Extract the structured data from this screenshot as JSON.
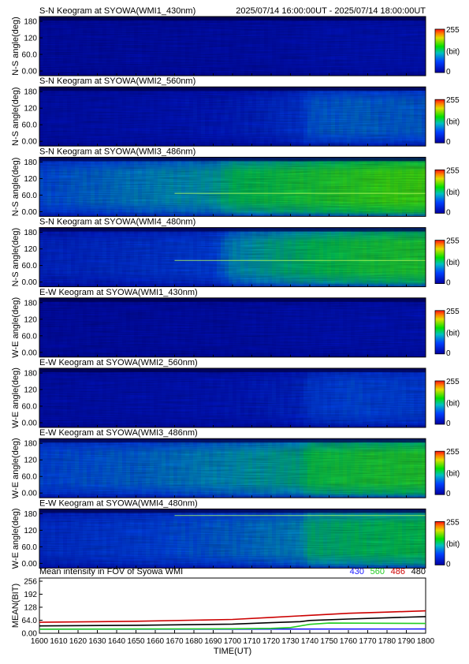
{
  "header": {
    "time_range": "2025/07/14 16:00:00UT - 2025/07/14 18:00:00UT"
  },
  "colorbar": {
    "max_label": "255",
    "unit_label": "(bit)",
    "min_label": "0"
  },
  "keogram_y_ticks": [
    "180",
    "120",
    "60.0",
    "0.00"
  ],
  "chart_data": [
    {
      "type": "heatmap",
      "title": "S-N Keogram at SYOWA(WMI1_430nm)",
      "ylabel": "N-S angle(deg)",
      "ylim": [
        0,
        180
      ],
      "xlim": [
        1600,
        1800
      ],
      "intensity_profile": {
        "x": [
          1600,
          1650,
          1700,
          1735,
          1740,
          1800
        ],
        "values": [
          22,
          24,
          26,
          30,
          34,
          36
        ]
      },
      "bright_band_deg": null
    },
    {
      "type": "heatmap",
      "title": "S-N Keogram at SYOWA(WMI2_560nm)",
      "ylabel": "N-S angle(deg)",
      "ylim": [
        0,
        180
      ],
      "xlim": [
        1600,
        1800
      ],
      "intensity_profile": {
        "x": [
          1600,
          1650,
          1700,
          1720,
          1735,
          1740,
          1760,
          1800
        ],
        "values": [
          28,
          34,
          44,
          52,
          60,
          75,
          80,
          78
        ]
      },
      "bright_band_deg": null
    },
    {
      "type": "heatmap",
      "title": "S-N Keogram at SYOWA(WMI3_486nm)",
      "ylabel": "N-S angle(deg)",
      "ylim": [
        0,
        180
      ],
      "xlim": [
        1600,
        1800
      ],
      "intensity_profile": {
        "x": [
          1600,
          1630,
          1660,
          1690,
          1700,
          1720,
          1740,
          1760,
          1780,
          1800
        ],
        "values": [
          72,
          82,
          92,
          100,
          118,
          125,
          132,
          140,
          148,
          150
        ]
      },
      "bright_band_deg": 70
    },
    {
      "type": "heatmap",
      "title": "S-N Keogram at SYOWA(WMI4_480nm)",
      "ylabel": "N-S angle(deg)",
      "ylim": [
        0,
        180
      ],
      "xlim": [
        1600,
        1800
      ],
      "intensity_profile": {
        "x": [
          1600,
          1630,
          1660,
          1690,
          1700,
          1720,
          1740,
          1760,
          1780,
          1800
        ],
        "values": [
          50,
          54,
          60,
          66,
          92,
          106,
          118,
          126,
          132,
          134
        ]
      },
      "bright_band_deg": 80
    },
    {
      "type": "heatmap",
      "title": "E-W Keogram at SYOWA(WMI1_430nm)",
      "ylabel": "W-E angle(deg)",
      "ylim": [
        0,
        180
      ],
      "xlim": [
        1600,
        1800
      ],
      "intensity_profile": {
        "x": [
          1600,
          1650,
          1700,
          1740,
          1800
        ],
        "values": [
          22,
          24,
          26,
          32,
          36
        ]
      },
      "bright_band_deg": null
    },
    {
      "type": "heatmap",
      "title": "E-W Keogram at SYOWA(WMI2_560nm)",
      "ylabel": "W-E angle(deg)",
      "ylim": [
        0,
        180
      ],
      "xlim": [
        1600,
        1800
      ],
      "intensity_profile": {
        "x": [
          1600,
          1650,
          1700,
          1735,
          1740,
          1760,
          1800
        ],
        "values": [
          28,
          32,
          40,
          50,
          62,
          70,
          66
        ]
      },
      "bright_band_deg": null
    },
    {
      "type": "heatmap",
      "title": "E-W Keogram at SYOWA(WMI3_486nm)",
      "ylabel": "W-E angle(deg)",
      "ylim": [
        0,
        180
      ],
      "xlim": [
        1600,
        1800
      ],
      "intensity_profile": {
        "x": [
          1600,
          1650,
          1700,
          1735,
          1740,
          1770,
          1800
        ],
        "values": [
          70,
          80,
          96,
          108,
          124,
          132,
          136
        ]
      },
      "bright_band_deg": null
    },
    {
      "type": "heatmap",
      "title": "E-W Keogram at SYOWA(WMI4_480nm)",
      "ylabel": "W-E angle(deg)",
      "ylim": [
        0,
        180
      ],
      "xlim": [
        1600,
        1800
      ],
      "intensity_profile": {
        "x": [
          1600,
          1650,
          1700,
          1735,
          1740,
          1770,
          1800
        ],
        "values": [
          55,
          66,
          80,
          92,
          110,
          118,
          122
        ]
      },
      "bright_band_deg": 160
    },
    {
      "type": "line",
      "title": "Mean intensity in FOV of Syowa WMI",
      "xlabel": "TIME(UT)",
      "ylabel": "MEAN(BIT)",
      "xlim": [
        1600,
        1800
      ],
      "ylim": [
        0,
        256
      ],
      "x_ticks": [
        "1600",
        "1610",
        "1620",
        "1630",
        "1640",
        "1650",
        "1660",
        "1670",
        "1680",
        "1690",
        "1700",
        "1710",
        "1720",
        "1730",
        "1740",
        "1750",
        "1760",
        "1770",
        "1780",
        "1790",
        "1800"
      ],
      "y_ticks": [
        "256",
        "192",
        "128",
        "64.0",
        "0.00"
      ],
      "series": [
        {
          "name": "430",
          "color": "#1a1aff",
          "x": [
            1600,
            1700,
            1800
          ],
          "values": [
            20,
            20,
            21
          ]
        },
        {
          "name": "560",
          "color": "#22cc22",
          "x": [
            1600,
            1650,
            1700,
            1720,
            1730,
            1740,
            1750,
            1800
          ],
          "values": [
            20,
            21,
            22,
            24,
            28,
            44,
            50,
            48
          ]
        },
        {
          "name": "486",
          "color": "#cc0000",
          "x": [
            1600,
            1650,
            1700,
            1720,
            1740,
            1760,
            1780,
            1800
          ],
          "values": [
            54,
            59,
            68,
            78,
            88,
            98,
            104,
            110
          ]
        },
        {
          "name": "480",
          "color": "#000000",
          "x": [
            1600,
            1650,
            1700,
            1720,
            1735,
            1740,
            1760,
            1780,
            1800
          ],
          "values": [
            36,
            39,
            45,
            52,
            57,
            63,
            70,
            76,
            82
          ]
        }
      ]
    }
  ]
}
